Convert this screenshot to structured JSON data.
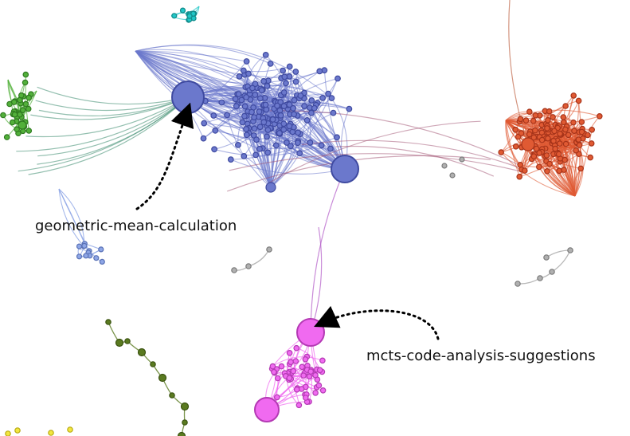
{
  "diagram": {
    "annotations": [
      {
        "id": "geo",
        "text": "geometric-mean-calculation"
      },
      {
        "id": "mcts",
        "text": "mcts-code-analysis-suggestions"
      }
    ],
    "clusters": [
      {
        "id": "blue",
        "color": "#6b78cc",
        "stroke": "#3f4aa0"
      },
      {
        "id": "orange",
        "color": "#e05a33",
        "stroke": "#a7341a"
      },
      {
        "id": "magenta",
        "color": "#f06af0",
        "stroke": "#b43ab4"
      },
      {
        "id": "green",
        "color": "#52b03a",
        "stroke": "#2f7a20"
      },
      {
        "id": "olive",
        "color": "#5a7a20",
        "stroke": "#3a5210"
      },
      {
        "id": "cyan",
        "color": "#20c6c6",
        "stroke": "#108a8a"
      },
      {
        "id": "lightblue",
        "color": "#8ea6e6",
        "stroke": "#5a72b6"
      },
      {
        "id": "gray",
        "color": "#b0b0b0",
        "stroke": "#7a7a7a"
      },
      {
        "id": "yellow",
        "color": "#f2e640",
        "stroke": "#b8aa10"
      }
    ]
  }
}
